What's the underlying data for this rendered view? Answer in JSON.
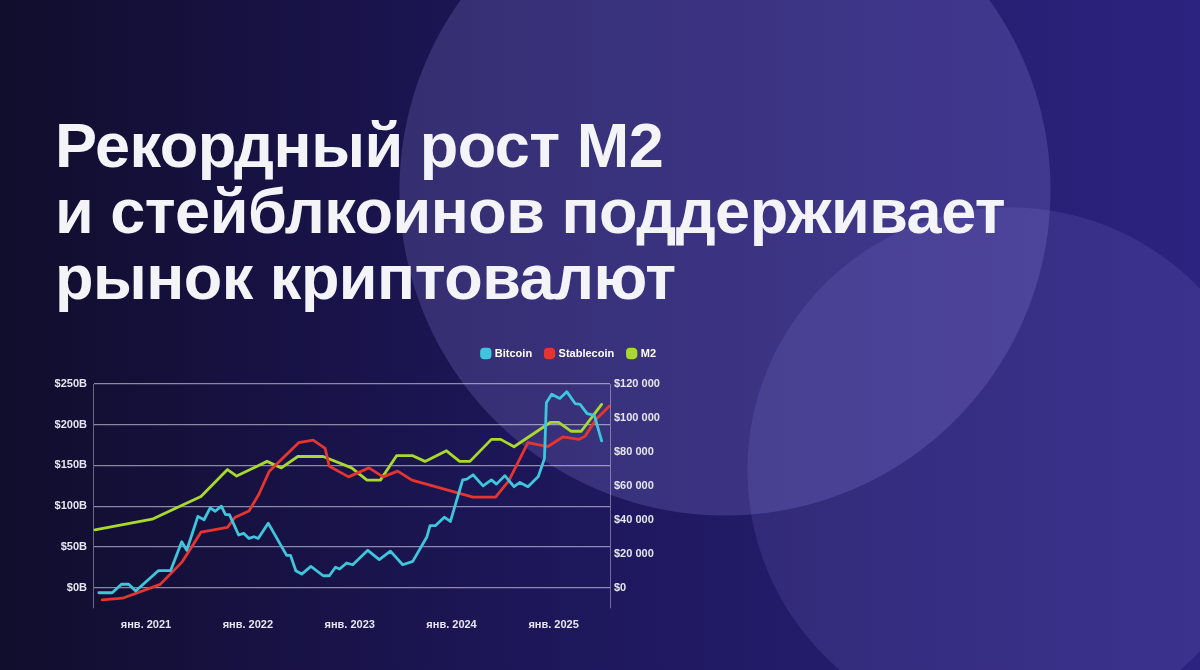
{
  "chart_data": {
    "type": "line",
    "title": "Рекордный рост M2\nи стейблкоинов поддерживает\nрынок криптовалют",
    "legend": "top right",
    "grid": "y",
    "xlim": [
      "2020-06-25",
      "2025-07-22"
    ],
    "xticks": [
      {
        "value": "2021-01-01",
        "label": "янв. 2021"
      },
      {
        "value": "2022-01-01",
        "label": "янв. 2022"
      },
      {
        "value": "2023-01-01",
        "label": "янв. 2023"
      },
      {
        "value": "2024-01-01",
        "label": "янв. 2024"
      },
      {
        "value": "2025-01-01",
        "label": "янв. 2025"
      }
    ],
    "ylim": [
      -25,
      250
    ],
    "yticks": [
      {
        "value": 0,
        "label": "$0B"
      },
      {
        "value": 50,
        "label": "$50B"
      },
      {
        "value": 100,
        "label": "$100B"
      },
      {
        "value": 150,
        "label": "$150B"
      },
      {
        "value": 200,
        "label": "$200B"
      },
      {
        "value": 250,
        "label": "$250B"
      }
    ],
    "y2lim": [
      -12000,
      120000
    ],
    "y2ticks": [
      {
        "value": 0,
        "label": "$0"
      },
      {
        "value": 20000,
        "label": "$20 000"
      },
      {
        "value": 40000,
        "label": "$40 000"
      },
      {
        "value": 60000,
        "label": "$60 000"
      },
      {
        "value": 80000,
        "label": "$80 000"
      },
      {
        "value": 100000,
        "label": "$100 000"
      },
      {
        "value": 120000,
        "label": "$120 000"
      }
    ],
    "series": [
      {
        "name": "Bitcoin",
        "color": "#3fc6dc",
        "axis": "y2",
        "x": [
          "2020-07-16",
          "2020-09-02",
          "2020-10-05",
          "2020-10-31",
          "2020-11-25",
          "2021-02-14",
          "2021-03-30",
          "2021-05-09",
          "2021-05-27",
          "2021-07-06",
          "2021-07-28",
          "2021-08-19",
          "2021-09-06",
          "2021-09-28",
          "2021-10-13",
          "2021-10-27",
          "2021-11-29",
          "2021-12-17",
          "2022-01-05",
          "2022-01-23",
          "2022-02-07",
          "2022-03-15",
          "2022-05-20",
          "2022-06-03",
          "2022-06-22",
          "2022-07-13",
          "2022-08-15",
          "2022-09-28",
          "2022-10-20",
          "2022-11-11",
          "2022-11-26",
          "2022-12-21",
          "2023-01-12",
          "2023-03-07",
          "2023-04-17",
          "2023-05-27",
          "2023-07-10",
          "2023-08-15",
          "2023-10-05",
          "2023-10-16",
          "2023-11-04",
          "2023-12-06",
          "2023-12-28",
          "2024-02-10",
          "2024-02-25",
          "2024-03-18",
          "2024-04-23",
          "2024-05-23",
          "2024-06-10",
          "2024-07-10",
          "2024-08-12",
          "2024-09-02",
          "2024-10-01",
          "2024-11-07",
          "2024-11-29",
          "2024-12-06",
          "2024-12-25",
          "2025-01-23",
          "2025-02-17",
          "2025-03-19",
          "2025-04-06",
          "2025-05-01",
          "2025-05-27",
          "2025-06-22"
        ],
        "values": [
          -3000,
          -3000,
          2000,
          2000,
          -2000,
          10000,
          10000,
          27000,
          22000,
          42000,
          40000,
          47000,
          45000,
          48000,
          43000,
          43000,
          31000,
          32000,
          29000,
          30000,
          29000,
          38000,
          19000,
          19000,
          10000,
          8000,
          12500,
          7000,
          7000,
          12000,
          11000,
          14500,
          13500,
          22000,
          16500,
          21500,
          13500,
          15500,
          30000,
          36500,
          36500,
          41500,
          39000,
          63500,
          64000,
          66500,
          60000,
          63500,
          61000,
          66000,
          59500,
          62000,
          59500,
          65500,
          76000,
          109000,
          114000,
          111500,
          115500,
          108500,
          108000,
          102500,
          101500,
          86500
        ]
      },
      {
        "name": "Stablecoin",
        "color": "#e5352f",
        "x": [
          "2020-07-28",
          "2020-10-09",
          "2021-02-21",
          "2021-05-09",
          "2021-07-17",
          "2021-10-20",
          "2021-11-15",
          "2022-01-05",
          "2022-02-10",
          "2022-03-19",
          "2022-07-02",
          "2022-08-23",
          "2022-10-05",
          "2022-10-20",
          "2022-12-28",
          "2023-03-11",
          "2023-05-01",
          "2023-06-22",
          "2023-08-12",
          "2024-03-18",
          "2024-06-07",
          "2024-07-24",
          "2024-10-01",
          "2024-12-10",
          "2025-02-03",
          "2025-04-02",
          "2025-04-24",
          "2025-06-03",
          "2025-07-20"
        ],
        "values": [
          -15,
          -13,
          4,
          31,
          68,
          74,
          86,
          94,
          115,
          143,
          178,
          181,
          171,
          149,
          136,
          147,
          136,
          143,
          132,
          111,
          111,
          131,
          178,
          173,
          185,
          182,
          186,
          207,
          223
        ]
      },
      {
        "name": "M2",
        "color": "#a8d92c",
        "x": [
          "2020-07-02",
          "2021-01-23",
          "2021-07-17",
          "2021-10-20",
          "2021-11-22",
          "2022-03-11",
          "2022-05-01",
          "2022-06-29",
          "2022-09-28",
          "2023-01-08",
          "2023-03-04",
          "2023-04-21",
          "2023-06-18",
          "2023-08-15",
          "2023-09-28",
          "2023-12-14",
          "2024-01-30",
          "2024-03-07",
          "2024-05-23",
          "2024-06-25",
          "2024-08-12",
          "2024-12-21",
          "2025-01-19",
          "2025-03-04",
          "2025-04-10",
          "2025-06-22"
        ],
        "values": [
          71,
          84,
          112,
          145,
          137,
          155,
          147,
          161,
          161,
          147,
          132,
          132,
          162,
          162,
          155,
          168,
          155,
          155,
          182,
          182,
          173,
          203,
          203,
          192,
          192,
          225
        ]
      }
    ]
  }
}
